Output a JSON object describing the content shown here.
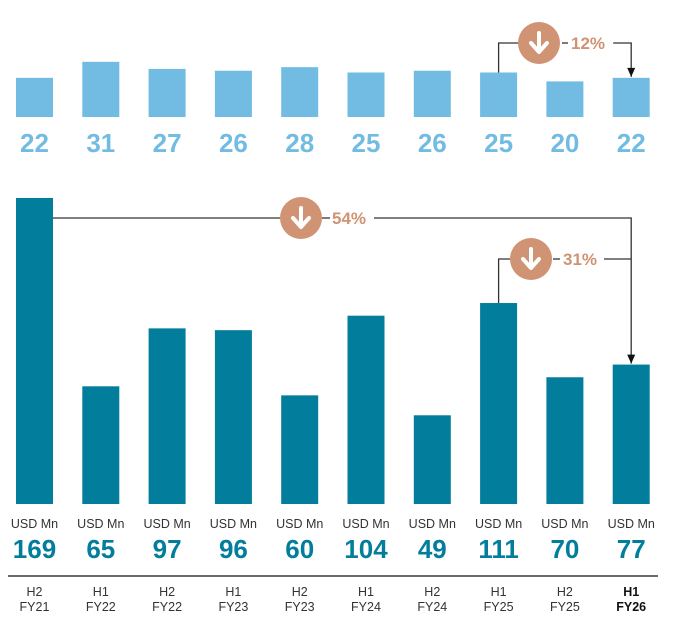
{
  "chart_data": [
    {
      "type": "bar",
      "name": "top-chart",
      "title": "",
      "xlabel": "",
      "ylabel": "",
      "categories": [
        "H2 FY21",
        "H1 FY22",
        "H2 FY22",
        "H1 FY23",
        "H2 FY23",
        "H1 FY24",
        "H2 FY24",
        "H1 FY25",
        "H2 FY25",
        "H1 FY26"
      ],
      "values": [
        22,
        31,
        27,
        26,
        28,
        25,
        26,
        25,
        20,
        22
      ],
      "value_labels": [
        "22",
        "31",
        "27",
        "26",
        "28",
        "25",
        "26",
        "25",
        "20",
        "22"
      ],
      "bar_color": "#72bce3",
      "label_color": "#72bce3",
      "grid": false,
      "annotations": [
        {
          "from_index": 7,
          "to_index": 9,
          "direction": "down",
          "label": "12%"
        }
      ]
    },
    {
      "type": "bar",
      "name": "bottom-chart",
      "title": "",
      "xlabel": "",
      "ylabel": "USD Mn",
      "unit_label": "USD Mn",
      "categories": [
        "H2 FY21",
        "H1 FY22",
        "H2 FY22",
        "H1 FY23",
        "H2 FY23",
        "H1 FY24",
        "H2 FY24",
        "H1 FY25",
        "H2 FY25",
        "H1 FY26"
      ],
      "category_lines": [
        [
          "H2",
          "FY21"
        ],
        [
          "H1",
          "FY22"
        ],
        [
          "H2",
          "FY22"
        ],
        [
          "H1",
          "FY23"
        ],
        [
          "H2",
          "FY23"
        ],
        [
          "H1",
          "FY24"
        ],
        [
          "H2",
          "FY24"
        ],
        [
          "H1",
          "FY25"
        ],
        [
          "H2",
          "FY25"
        ],
        [
          "H1",
          "FY26"
        ]
      ],
      "highlight_index": 9,
      "values": [
        169,
        65,
        97,
        96,
        60,
        104,
        49,
        111,
        70,
        77
      ],
      "value_labels": [
        "169",
        "65",
        "97",
        "96",
        "60",
        "104",
        "49",
        "111",
        "70",
        "77"
      ],
      "bar_color": "#027e9c",
      "label_color": "#027e9c",
      "grid": false,
      "annotations": [
        {
          "from_index": 0,
          "to_index": 9,
          "direction": "down",
          "label": "54%"
        },
        {
          "from_index": 7,
          "to_index": 9,
          "direction": "down",
          "label": "31%"
        }
      ]
    }
  ],
  "annotation_style": {
    "circle_color": "#d09373",
    "text_color": "#d09373",
    "line_color": "#333333",
    "icon": "arrow-down-icon"
  }
}
